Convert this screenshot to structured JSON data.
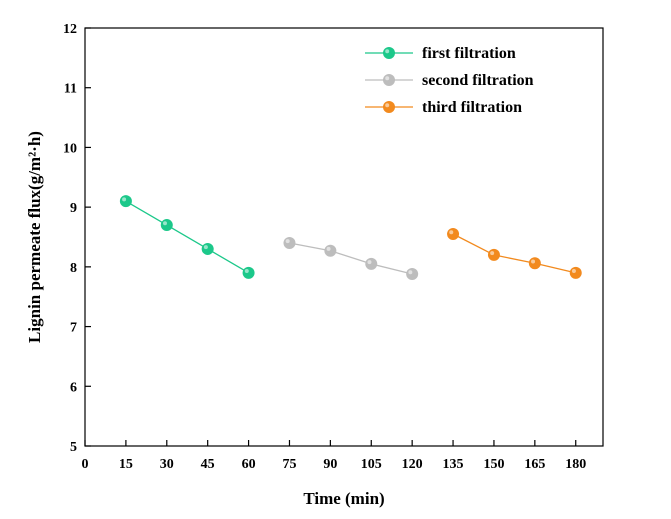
{
  "chart_data": {
    "type": "line",
    "title": "",
    "xlabel": "Time (min)",
    "ylabel": "Lignin permeate flux(g/m²·h)",
    "xlim": [
      0,
      190
    ],
    "ylim": [
      5,
      12
    ],
    "xticks": [
      0,
      15,
      30,
      45,
      60,
      75,
      90,
      105,
      120,
      135,
      150,
      165,
      180
    ],
    "yticks": [
      5,
      6,
      7,
      8,
      9,
      10,
      11,
      12
    ],
    "grid": false,
    "legend_position": "top-right",
    "series": [
      {
        "name": "first filtration",
        "color": "#1cc88a",
        "x": [
          15,
          30,
          45,
          60
        ],
        "y": [
          9.1,
          8.7,
          8.3,
          7.9
        ]
      },
      {
        "name": "second filtration",
        "color": "#bdbdbd",
        "x": [
          75,
          90,
          105,
          120
        ],
        "y": [
          8.4,
          8.27,
          8.05,
          7.88
        ]
      },
      {
        "name": "third filtration",
        "color": "#f28a1e",
        "x": [
          135,
          150,
          165,
          180
        ],
        "y": [
          8.55,
          8.2,
          8.06,
          7.9
        ]
      }
    ]
  }
}
